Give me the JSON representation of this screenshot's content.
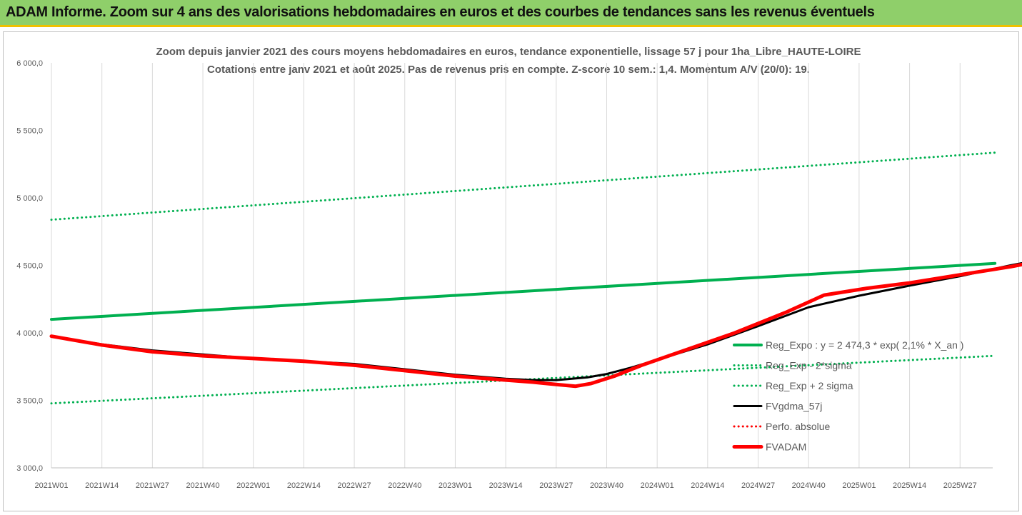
{
  "header": {
    "title": "ADAM Informe. Zoom sur 4 ans des valorisations hebdomadaires en euros et des courbes de tendances sans les revenus éventuels"
  },
  "chart_data": {
    "type": "line",
    "title": "Zoom depuis janvier 2021 des cours moyens hebdomadaires en euros, tendance exponentielle, lissage 57 j pour 1ha_Libre_HAUTE-LOIRE",
    "subtitle": "Cotations entre janv 2021 et août 2025. Pas de revenus pris en compte. Z-score 10 sem.: 1,4. Momentum A/V (20/0): 19.",
    "xlabel": "",
    "ylabel": "",
    "ylim": [
      3000,
      6000
    ],
    "yticks": [
      "3 000,0",
      "3 500,0",
      "4 000,0",
      "4 500,0",
      "5 000,0",
      "5 500,0",
      "6 000,0"
    ],
    "xticks": [
      "2021W01",
      "2021W14",
      "2021W27",
      "2021W40",
      "2022W01",
      "2022W14",
      "2022W27",
      "2022W40",
      "2023W01",
      "2023W14",
      "2023W27",
      "2023W40",
      "2024W01",
      "2024W14",
      "2024W27",
      "2024W40",
      "2025W01",
      "2025W14",
      "2025W27"
    ],
    "grid": "vertical",
    "legend_position": "bottom-right",
    "x_week_range": [
      0,
      243
    ],
    "series": [
      {
        "name": "Reg_Expo : y = 2 474,3 * exp( 2,1% *  X_an )",
        "color": "#00b050",
        "style": "solid",
        "points": [
          [
            0,
            4100
          ],
          [
            243,
            4515
          ]
        ]
      },
      {
        "name": "Reg_Exp - 2*sigma",
        "color": "#00b050",
        "style": "dotted",
        "points": [
          [
            0,
            3478
          ],
          [
            243,
            3830
          ]
        ]
      },
      {
        "name": "Reg_Exp + 2 sigma",
        "color": "#00b050",
        "style": "dotted",
        "points": [
          [
            0,
            4838
          ],
          [
            243,
            5335
          ]
        ]
      },
      {
        "name": "FVgdma_57j",
        "color": "#000000",
        "style": "solid",
        "points": [
          [
            0,
            3975
          ],
          [
            13,
            3915
          ],
          [
            26,
            3870
          ],
          [
            39,
            3840
          ],
          [
            52,
            3810
          ],
          [
            65,
            3790
          ],
          [
            78,
            3770
          ],
          [
            91,
            3730
          ],
          [
            104,
            3690
          ],
          [
            117,
            3660
          ],
          [
            124,
            3650
          ],
          [
            130,
            3650
          ],
          [
            138,
            3670
          ],
          [
            143,
            3695
          ],
          [
            149,
            3740
          ],
          [
            156,
            3800
          ],
          [
            169,
            3915
          ],
          [
            182,
            4050
          ],
          [
            195,
            4190
          ],
          [
            208,
            4275
          ],
          [
            221,
            4350
          ],
          [
            234,
            4420
          ],
          [
            247,
            4500
          ],
          [
            255,
            4545
          ],
          [
            260,
            4560
          ],
          [
            264,
            4560
          ]
        ]
      },
      {
        "name": "Perfo. absolue",
        "color": "#ff0000",
        "style": "dotted",
        "points": []
      },
      {
        "name": "FVADAM",
        "color": "#ff0000",
        "style": "solid",
        "points": [
          [
            0,
            3975
          ],
          [
            13,
            3910
          ],
          [
            26,
            3860
          ],
          [
            39,
            3830
          ],
          [
            52,
            3810
          ],
          [
            65,
            3790
          ],
          [
            78,
            3760
          ],
          [
            91,
            3720
          ],
          [
            104,
            3680
          ],
          [
            117,
            3650
          ],
          [
            124,
            3635
          ],
          [
            131,
            3615
          ],
          [
            135,
            3605
          ],
          [
            139,
            3625
          ],
          [
            145,
            3680
          ],
          [
            152,
            3760
          ],
          [
            163,
            3870
          ],
          [
            176,
            4000
          ],
          [
            189,
            4150
          ],
          [
            199,
            4280
          ],
          [
            210,
            4330
          ],
          [
            221,
            4370
          ],
          [
            234,
            4430
          ],
          [
            247,
            4490
          ],
          [
            256,
            4540
          ],
          [
            264,
            4555
          ]
        ]
      }
    ]
  }
}
